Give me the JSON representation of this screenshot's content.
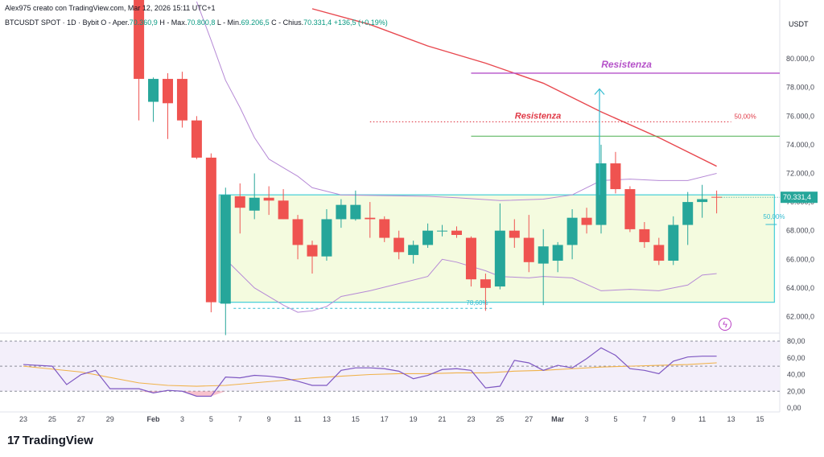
{
  "header": {
    "creator_line": "Alex975 creato con TradingView.com, Mar 12, 2026 15:11 UTC+1",
    "symbol": "BTCUSDT SPOT · 1D · Bybit",
    "o_label": "O - Aper.",
    "o_value": "70.360,9",
    "h_label": "H - Max.",
    "h_value": "70.800,8",
    "l_label": "L - Min.",
    "l_value": "69.206,5",
    "c_label": "C - Chius.",
    "c_value": "70.331,4",
    "change": "+136,5 (+0,19%)"
  },
  "brand": {
    "name": "TradingView",
    "mark": "17"
  },
  "colors": {
    "up": "#26a69a",
    "down": "#ef5350",
    "range_fill": "#f4fbdf",
    "range_border": "#4fd1d9",
    "resist_purple": "#b552c9",
    "resist_red": "#e03a47",
    "green_line": "#4caf50",
    "ma_red": "#e8484f",
    "band": "#b68ad6",
    "rsi": "#7e57c2",
    "rsi_ma": "#f0b24b"
  },
  "chart_data": {
    "type": "candlestick",
    "price_axis": {
      "unit": "USDT",
      "ticks": [
        "80.000,0",
        "78.000,0",
        "76.000,0",
        "74.000,0",
        "72.000,0",
        "70.000,0",
        "68.000,0",
        "66.000,0",
        "64.000,0",
        "62.000,0"
      ],
      "tick_values": [
        80000,
        78000,
        76000,
        74000,
        72000,
        70000,
        68000,
        66000,
        64000,
        62000
      ],
      "range": [
        60900,
        83100
      ],
      "last_price_label": "70.331,4",
      "last_price": 70331
    },
    "x_axis": {
      "labels": [
        "23",
        "25",
        "27",
        "29",
        "Feb",
        "3",
        "5",
        "7",
        "9",
        "11",
        "13",
        "15",
        "17",
        "19",
        "21",
        "23",
        "25",
        "27",
        "Mar",
        "3",
        "5",
        "7",
        "9",
        "11",
        "13",
        "15"
      ],
      "label_day_index": [
        0,
        2,
        4,
        6,
        9,
        11,
        13,
        15,
        17,
        19,
        21,
        23,
        25,
        27,
        29,
        31,
        33,
        35,
        37,
        39,
        41,
        43,
        45,
        47,
        49,
        51
      ]
    },
    "candles": [
      {
        "d": 8,
        "o": 84500,
        "h": 85500,
        "l": 75700,
        "c": 78600
      },
      {
        "d": 9,
        "o": 77000,
        "h": 78700,
        "l": 75600,
        "c": 78600
      },
      {
        "d": 10,
        "o": 78600,
        "h": 79000,
        "l": 74400,
        "c": 76900
      },
      {
        "d": 11,
        "o": 78600,
        "h": 79100,
        "l": 75200,
        "c": 75700
      },
      {
        "d": 12,
        "o": 75700,
        "h": 76000,
        "l": 73000,
        "c": 73100
      },
      {
        "d": 13,
        "o": 73100,
        "h": 73400,
        "l": 62300,
        "c": 63000
      },
      {
        "d": 14,
        "o": 62900,
        "h": 71000,
        "l": 60700,
        "c": 70500
      },
      {
        "d": 15,
        "o": 70400,
        "h": 71300,
        "l": 67800,
        "c": 69600
      },
      {
        "d": 16,
        "o": 69400,
        "h": 72000,
        "l": 68800,
        "c": 70300
      },
      {
        "d": 17,
        "o": 70300,
        "h": 71100,
        "l": 69100,
        "c": 70100
      },
      {
        "d": 18,
        "o": 70100,
        "h": 70900,
        "l": 68800,
        "c": 68800
      },
      {
        "d": 19,
        "o": 68800,
        "h": 69100,
        "l": 66000,
        "c": 67000
      },
      {
        "d": 20,
        "o": 67000,
        "h": 67300,
        "l": 65000,
        "c": 66200
      },
      {
        "d": 21,
        "o": 66200,
        "h": 69500,
        "l": 65900,
        "c": 68800
      },
      {
        "d": 22,
        "o": 68800,
        "h": 70200,
        "l": 68200,
        "c": 69800
      },
      {
        "d": 23,
        "o": 68800,
        "h": 70800,
        "l": 68700,
        "c": 69800
      },
      {
        "d": 24,
        "o": 68900,
        "h": 70000,
        "l": 67500,
        "c": 68800
      },
      {
        "d": 25,
        "o": 68800,
        "h": 69000,
        "l": 67200,
        "c": 67500
      },
      {
        "d": 26,
        "o": 67500,
        "h": 68000,
        "l": 66000,
        "c": 66500
      },
      {
        "d": 27,
        "o": 66300,
        "h": 67300,
        "l": 65700,
        "c": 67000
      },
      {
        "d": 28,
        "o": 67000,
        "h": 68500,
        "l": 66800,
        "c": 68000
      },
      {
        "d": 29,
        "o": 68000,
        "h": 68400,
        "l": 67600,
        "c": 68000
      },
      {
        "d": 30,
        "o": 68000,
        "h": 68300,
        "l": 67500,
        "c": 67700
      },
      {
        "d": 31,
        "o": 67500,
        "h": 67600,
        "l": 64100,
        "c": 64600
      },
      {
        "d": 32,
        "o": 64600,
        "h": 65000,
        "l": 62400,
        "c": 64000
      },
      {
        "d": 33,
        "o": 64100,
        "h": 69900,
        "l": 63900,
        "c": 68000
      },
      {
        "d": 34,
        "o": 68000,
        "h": 68800,
        "l": 66800,
        "c": 67500
      },
      {
        "d": 35,
        "o": 67500,
        "h": 69100,
        "l": 65100,
        "c": 65800
      },
      {
        "d": 36,
        "o": 65700,
        "h": 68100,
        "l": 62800,
        "c": 66900
      },
      {
        "d": 37,
        "o": 65900,
        "h": 67200,
        "l": 65100,
        "c": 67000
      },
      {
        "d": 38,
        "o": 67000,
        "h": 69500,
        "l": 66000,
        "c": 68900
      },
      {
        "d": 39,
        "o": 68900,
        "h": 69600,
        "l": 67800,
        "c": 68400
      },
      {
        "d": 40,
        "o": 68400,
        "h": 74000,
        "l": 67800,
        "c": 72700
      },
      {
        "d": 41,
        "o": 72700,
        "h": 73500,
        "l": 70600,
        "c": 70900
      },
      {
        "d": 42,
        "o": 70900,
        "h": 71100,
        "l": 67900,
        "c": 68100
      },
      {
        "d": 43,
        "o": 68100,
        "h": 68600,
        "l": 66800,
        "c": 67200
      },
      {
        "d": 44,
        "o": 67000,
        "h": 67500,
        "l": 65600,
        "c": 65900
      },
      {
        "d": 45,
        "o": 65900,
        "h": 69000,
        "l": 65600,
        "c": 68400
      },
      {
        "d": 46,
        "o": 68400,
        "h": 70700,
        "l": 67000,
        "c": 70000
      },
      {
        "d": 47,
        "o": 70000,
        "h": 71200,
        "l": 68900,
        "c": 70200
      },
      {
        "d": 48,
        "o": 70361,
        "h": 70801,
        "l": 69207,
        "c": 70331
      }
    ],
    "ma_red": [
      [
        20,
        83500
      ],
      [
        24,
        82400
      ],
      [
        28,
        80900
      ],
      [
        32,
        79700
      ],
      [
        36,
        78300
      ],
      [
        40,
        76300
      ],
      [
        44,
        74500
      ],
      [
        48,
        72500
      ]
    ],
    "band_upper": [
      [
        12,
        84000
      ],
      [
        13,
        81300
      ],
      [
        14,
        78500
      ],
      [
        15,
        76600
      ],
      [
        16,
        74500
      ],
      [
        17,
        73000
      ],
      [
        18,
        72400
      ],
      [
        19,
        71800
      ],
      [
        20,
        71000
      ],
      [
        22,
        70500
      ],
      [
        28,
        70400
      ],
      [
        30,
        70300
      ],
      [
        33,
        70100
      ],
      [
        36,
        70200
      ],
      [
        38,
        70500
      ],
      [
        39,
        71000
      ],
      [
        40,
        71500
      ],
      [
        42,
        71600
      ],
      [
        44,
        71500
      ],
      [
        46,
        71500
      ],
      [
        48,
        72000
      ]
    ],
    "band_lower": [
      [
        14,
        66000
      ],
      [
        16,
        64000
      ],
      [
        18,
        62800
      ],
      [
        19,
        62300
      ],
      [
        20,
        62400
      ],
      [
        21,
        62700
      ],
      [
        22,
        63400
      ],
      [
        24,
        63800
      ],
      [
        26,
        64300
      ],
      [
        28,
        64800
      ],
      [
        29,
        66000
      ],
      [
        30,
        65800
      ],
      [
        32,
        65200
      ],
      [
        33,
        64800
      ],
      [
        35,
        64700
      ],
      [
        36,
        64800
      ],
      [
        38,
        64700
      ],
      [
        40,
        63800
      ],
      [
        42,
        63900
      ],
      [
        44,
        63800
      ],
      [
        46,
        64200
      ],
      [
        47,
        64900
      ],
      [
        48,
        65000
      ]
    ],
    "range_box": {
      "from_day": 14,
      "to_day": 52,
      "top": 70500,
      "bottom": 63000
    },
    "fib_labels": [
      {
        "text": "50,00%",
        "price": 68600
      },
      {
        "text": "78,60%",
        "price": 62800
      }
    ],
    "resistance": [
      {
        "label": "Resistenza",
        "price": 79000,
        "style": "solid-purple",
        "from_day": 31
      },
      {
        "label": "Resistenza",
        "price": 75600,
        "style": "dotted-red",
        "from_day": 24,
        "to_day": 49,
        "right_label": "50,00%"
      }
    ],
    "green_level": {
      "price": 74600,
      "from_day": 31
    },
    "arrow": {
      "day": 40,
      "from": 70500,
      "to": 77900
    },
    "rsi": {
      "axis_ticks": [
        "80,00",
        "60,00",
        "40,00",
        "20,00",
        "0,00"
      ],
      "tick_values": [
        80,
        60,
        40,
        20,
        0
      ],
      "levels": [
        80,
        50,
        20
      ],
      "values": [
        [
          0,
          52
        ],
        [
          2,
          50
        ],
        [
          3,
          28
        ],
        [
          4,
          40
        ],
        [
          5,
          45
        ],
        [
          6,
          23
        ],
        [
          8,
          23
        ],
        [
          9,
          18
        ],
        [
          10,
          21
        ],
        [
          11,
          20
        ],
        [
          12,
          14
        ],
        [
          13,
          14
        ],
        [
          14,
          37
        ],
        [
          15,
          36
        ],
        [
          16,
          39
        ],
        [
          17,
          38
        ],
        [
          18,
          36
        ],
        [
          19,
          32
        ],
        [
          20,
          27
        ],
        [
          21,
          27
        ],
        [
          22,
          45
        ],
        [
          23,
          48
        ],
        [
          24,
          48
        ],
        [
          25,
          47
        ],
        [
          26,
          44
        ],
        [
          27,
          35
        ],
        [
          28,
          39
        ],
        [
          29,
          46
        ],
        [
          30,
          47
        ],
        [
          31,
          45
        ],
        [
          32,
          24
        ],
        [
          33,
          26
        ],
        [
          34,
          57
        ],
        [
          35,
          54
        ],
        [
          36,
          45
        ],
        [
          37,
          51
        ],
        [
          38,
          48
        ],
        [
          39,
          59
        ],
        [
          40,
          72
        ],
        [
          41,
          63
        ],
        [
          42,
          47
        ],
        [
          43,
          45
        ],
        [
          44,
          41
        ],
        [
          45,
          56
        ],
        [
          46,
          61
        ],
        [
          47,
          62
        ],
        [
          48,
          62
        ]
      ],
      "ma": [
        [
          0,
          50
        ],
        [
          4,
          43
        ],
        [
          8,
          30
        ],
        [
          10,
          27
        ],
        [
          12,
          26
        ],
        [
          14,
          27
        ],
        [
          16,
          30
        ],
        [
          18,
          33
        ],
        [
          20,
          36
        ],
        [
          22,
          38
        ],
        [
          24,
          40
        ],
        [
          26,
          41
        ],
        [
          28,
          41
        ],
        [
          30,
          42
        ],
        [
          32,
          42
        ],
        [
          34,
          44
        ],
        [
          36,
          45
        ],
        [
          38,
          47
        ],
        [
          40,
          49
        ],
        [
          42,
          50
        ],
        [
          44,
          51
        ],
        [
          46,
          52
        ],
        [
          48,
          54
        ]
      ]
    }
  }
}
